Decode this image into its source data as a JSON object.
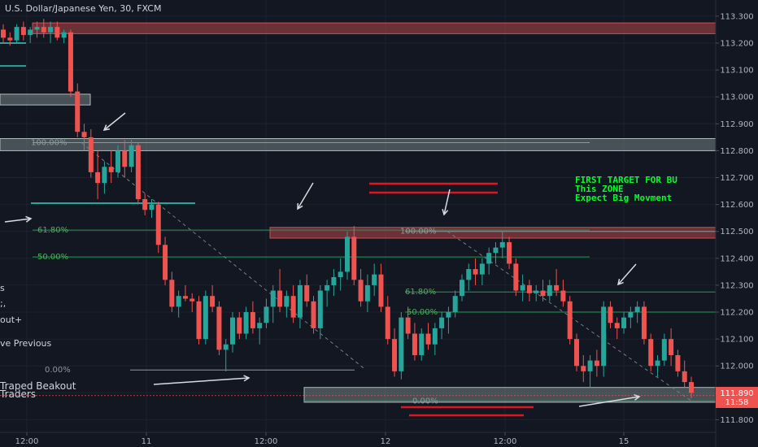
{
  "header": {
    "title": "U.S. Dollar/Japanese Yen, 30, FXCM"
  },
  "colors": {
    "background": "#131722",
    "up": "#26a69a",
    "down": "#ef5350",
    "axis_text": "#b2b5be",
    "grid": "#1e222d",
    "fib_line": "#1f9d55",
    "fib_text": "#4caf50",
    "zone_red": "#8b3a3f",
    "zone_gray": "#8a9a9a",
    "note": "#00ff2a",
    "annotation_red": "#e0161e",
    "arrow": "#d8dbe0",
    "current_price_bg": "#ef5350",
    "teal_line": "#26a69a"
  },
  "side_notes": [
    "s",
    ";,",
    "out+",
    "ve Previous",
    "Traped Beakout",
    "Traders"
  ],
  "annotation_note": [
    "FIRST TARGET FOR BU",
    "This ZONE",
    "Expect Big Movment"
  ],
  "fib_labels": [
    {
      "text": "100.00%",
      "price": 112.83
    },
    {
      "text": "61.80%",
      "price": 112.505
    },
    {
      "text": "50.00%",
      "price": 112.405
    },
    {
      "text": "0.00%",
      "price": 111.985
    },
    {
      "text": "100.00%",
      "price": 112.5
    },
    {
      "text": "61.80%",
      "price": 112.275
    },
    {
      "text": "50.00%",
      "price": 112.2
    },
    {
      "text": "0.00%",
      "price": 111.87
    }
  ],
  "price_tag": {
    "value": "111.890",
    "countdown": "11:58"
  },
  "chart_data": {
    "type": "candlestick",
    "title": "U.S. Dollar/Japanese Yen, 30, FXCM",
    "xlabel": "",
    "ylabel": "",
    "ylim": [
      111.75,
      113.33
    ],
    "y_ticks": [
      "113.300",
      "113.200",
      "113.100",
      "113.000",
      "112.900",
      "112.800",
      "112.700",
      "112.600",
      "112.500",
      "112.400",
      "112.300",
      "112.200",
      "112.100",
      "112.000",
      "111.900",
      "111.800"
    ],
    "x_ticks": [
      "12:00",
      "11",
      "12:00",
      "12",
      "12:00",
      "15"
    ],
    "current_price": 111.89,
    "zones": [
      {
        "kind": "resistance",
        "from": 113.235,
        "to": 113.275
      },
      {
        "kind": "resistance",
        "from": 112.475,
        "to": 112.515
      },
      {
        "kind": "fib",
        "from": 112.8,
        "to": 112.845
      },
      {
        "kind": "fib",
        "from": 111.865,
        "to": 111.92
      },
      {
        "kind": "fib",
        "from": 112.97,
        "to": 113.01
      }
    ],
    "candles": [
      [
        113.25,
        113.27,
        113.2,
        113.22
      ],
      [
        113.22,
        113.24,
        113.19,
        113.21
      ],
      [
        113.21,
        113.27,
        113.2,
        113.26
      ],
      [
        113.26,
        113.28,
        113.21,
        113.23
      ],
      [
        113.23,
        113.26,
        113.2,
        113.25
      ],
      [
        113.25,
        113.28,
        113.22,
        113.26
      ],
      [
        113.26,
        113.29,
        113.22,
        113.24
      ],
      [
        113.24,
        113.28,
        113.2,
        113.26
      ],
      [
        113.26,
        113.28,
        113.21,
        113.22
      ],
      [
        113.22,
        113.25,
        113.2,
        113.24
      ],
      [
        113.24,
        113.25,
        113.0,
        113.02
      ],
      [
        113.02,
        113.05,
        112.85,
        112.87
      ],
      [
        112.87,
        112.9,
        112.8,
        112.85
      ],
      [
        112.85,
        112.88,
        112.7,
        112.72
      ],
      [
        112.72,
        112.8,
        112.62,
        112.68
      ],
      [
        112.68,
        112.76,
        112.64,
        112.74
      ],
      [
        112.74,
        112.8,
        112.68,
        112.72
      ],
      [
        112.72,
        112.82,
        112.7,
        112.8
      ],
      [
        112.8,
        112.84,
        112.7,
        112.74
      ],
      [
        112.74,
        112.84,
        112.72,
        112.82
      ],
      [
        112.82,
        112.83,
        112.6,
        112.62
      ],
      [
        112.62,
        112.64,
        112.56,
        112.58
      ],
      [
        112.58,
        112.62,
        112.55,
        112.6
      ],
      [
        112.6,
        112.61,
        112.42,
        112.45
      ],
      [
        112.45,
        112.48,
        112.3,
        112.32
      ],
      [
        112.32,
        112.35,
        112.2,
        112.22
      ],
      [
        112.22,
        112.28,
        112.18,
        112.26
      ],
      [
        112.26,
        112.3,
        112.24,
        112.25
      ],
      [
        112.25,
        112.27,
        112.2,
        112.24
      ],
      [
        112.24,
        112.26,
        112.08,
        112.1
      ],
      [
        112.1,
        112.28,
        112.08,
        112.26
      ],
      [
        112.26,
        112.3,
        112.2,
        112.22
      ],
      [
        112.22,
        112.24,
        112.04,
        112.06
      ],
      [
        112.06,
        112.1,
        111.98,
        112.08
      ],
      [
        112.08,
        112.2,
        112.05,
        112.18
      ],
      [
        112.18,
        112.2,
        112.1,
        112.12
      ],
      [
        112.12,
        112.22,
        112.1,
        112.2
      ],
      [
        112.2,
        112.24,
        112.12,
        112.14
      ],
      [
        112.14,
        112.18,
        112.08,
        112.16
      ],
      [
        112.16,
        112.25,
        112.14,
        112.22
      ],
      [
        112.22,
        112.3,
        112.16,
        112.28
      ],
      [
        112.28,
        112.36,
        112.2,
        112.22
      ],
      [
        112.22,
        112.28,
        112.18,
        112.26
      ],
      [
        112.26,
        112.3,
        112.16,
        112.18
      ],
      [
        112.18,
        112.32,
        112.14,
        112.3
      ],
      [
        112.3,
        112.34,
        112.22,
        112.24
      ],
      [
        112.24,
        112.26,
        112.12,
        112.14
      ],
      [
        112.14,
        112.3,
        112.1,
        112.28
      ],
      [
        112.28,
        112.32,
        112.22,
        112.3
      ],
      [
        112.3,
        112.36,
        112.26,
        112.33
      ],
      [
        112.33,
        112.4,
        112.28,
        112.35
      ],
      [
        112.35,
        112.5,
        112.32,
        112.48
      ],
      [
        112.48,
        112.52,
        112.3,
        112.32
      ],
      [
        112.32,
        112.36,
        112.22,
        112.24
      ],
      [
        112.24,
        112.34,
        112.2,
        112.3
      ],
      [
        112.3,
        112.38,
        112.26,
        112.34
      ],
      [
        112.34,
        112.38,
        112.2,
        112.22
      ],
      [
        112.22,
        112.26,
        112.08,
        112.1
      ],
      [
        112.1,
        112.14,
        111.96,
        111.98
      ],
      [
        111.98,
        112.2,
        111.95,
        112.18
      ],
      [
        112.18,
        112.22,
        112.1,
        112.12
      ],
      [
        112.12,
        112.16,
        112.02,
        112.04
      ],
      [
        112.04,
        112.14,
        112.02,
        112.12
      ],
      [
        112.12,
        112.16,
        112.06,
        112.08
      ],
      [
        112.08,
        112.16,
        112.04,
        112.14
      ],
      [
        112.14,
        112.2,
        112.1,
        112.18
      ],
      [
        112.18,
        112.22,
        112.12,
        112.2
      ],
      [
        112.2,
        112.28,
        112.18,
        112.26
      ],
      [
        112.26,
        112.34,
        112.24,
        112.32
      ],
      [
        112.32,
        112.38,
        112.28,
        112.36
      ],
      [
        112.36,
        112.4,
        112.3,
        112.34
      ],
      [
        112.34,
        112.4,
        112.3,
        112.38
      ],
      [
        112.38,
        112.44,
        112.34,
        112.42
      ],
      [
        112.42,
        112.46,
        112.38,
        112.44
      ],
      [
        112.44,
        112.5,
        112.4,
        112.46
      ],
      [
        112.46,
        112.48,
        112.36,
        112.38
      ],
      [
        112.38,
        112.4,
        112.26,
        112.28
      ],
      [
        112.28,
        112.34,
        112.24,
        112.3
      ],
      [
        112.3,
        112.32,
        112.24,
        112.27
      ],
      [
        112.27,
        112.3,
        112.24,
        112.28
      ],
      [
        112.28,
        112.32,
        112.24,
        112.26
      ],
      [
        112.26,
        112.32,
        112.24,
        112.3
      ],
      [
        112.3,
        112.36,
        112.26,
        112.28
      ],
      [
        112.28,
        112.32,
        112.22,
        112.24
      ],
      [
        112.24,
        112.26,
        112.08,
        112.1
      ],
      [
        112.1,
        112.12,
        111.98,
        112.0
      ],
      [
        112.0,
        112.04,
        111.94,
        111.98
      ],
      [
        111.98,
        112.04,
        111.92,
        112.02
      ],
      [
        112.02,
        112.06,
        111.96,
        112.0
      ],
      [
        112.0,
        112.24,
        111.96,
        112.22
      ],
      [
        112.22,
        112.24,
        112.14,
        112.16
      ],
      [
        112.16,
        112.18,
        112.1,
        112.14
      ],
      [
        112.14,
        112.2,
        112.12,
        112.18
      ],
      [
        112.18,
        112.22,
        112.14,
        112.2
      ],
      [
        112.2,
        112.24,
        112.16,
        112.22
      ],
      [
        112.22,
        112.24,
        112.08,
        112.1
      ],
      [
        112.1,
        112.12,
        111.98,
        112.0
      ],
      [
        112.0,
        112.04,
        111.96,
        112.02
      ],
      [
        112.02,
        112.12,
        112.0,
        112.1
      ],
      [
        112.1,
        112.14,
        112.0,
        112.04
      ],
      [
        112.04,
        112.06,
        111.96,
        111.98
      ],
      [
        111.98,
        112.02,
        111.92,
        111.94
      ],
      [
        111.94,
        111.96,
        111.88,
        111.9
      ]
    ]
  }
}
